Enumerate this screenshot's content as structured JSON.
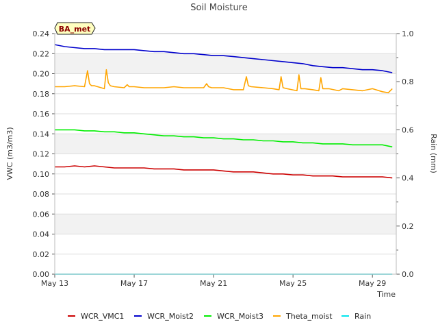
{
  "chart_data": {
    "type": "line",
    "title": "Soil Moisture",
    "site_label": "BA_met",
    "xlabel": "Time",
    "ylabel": "VWC (m3/m3)",
    "y2label": "Rain (mm)",
    "x_unit": "days since May 13",
    "xlim": [
      0,
      17.2
    ],
    "ylim": [
      0,
      0.24
    ],
    "y2lim": [
      0,
      1.0
    ],
    "x_ticks": [
      {
        "value": 0,
        "label": "May 13"
      },
      {
        "value": 4,
        "label": "May 17"
      },
      {
        "value": 8,
        "label": "May 21"
      },
      {
        "value": 12,
        "label": "May 25"
      },
      {
        "value": 16,
        "label": "May 29"
      }
    ],
    "y_ticks": [
      {
        "value": 0.0,
        "label": "0.00"
      },
      {
        "value": 0.02,
        "label": "0.02"
      },
      {
        "value": 0.04,
        "label": "0.04"
      },
      {
        "value": 0.06,
        "label": "0.06"
      },
      {
        "value": 0.08,
        "label": "0.08"
      },
      {
        "value": 0.1,
        "label": "0.10"
      },
      {
        "value": 0.12,
        "label": "0.12"
      },
      {
        "value": 0.14,
        "label": "0.14"
      },
      {
        "value": 0.16,
        "label": "0.16"
      },
      {
        "value": 0.18,
        "label": "0.18"
      },
      {
        "value": 0.2,
        "label": "0.20"
      },
      {
        "value": 0.22,
        "label": "0.22"
      },
      {
        "value": 0.24,
        "label": "0.24"
      }
    ],
    "y2_ticks": [
      {
        "value": 0.0,
        "label": "0.0"
      },
      {
        "value": 0.2,
        "label": "0.2"
      },
      {
        "value": 0.4,
        "label": "0.4"
      },
      {
        "value": 0.6,
        "label": "0.6"
      },
      {
        "value": 0.8,
        "label": "0.8"
      },
      {
        "value": 1.0,
        "label": "1.0"
      }
    ],
    "legend_position": "bottom",
    "series": [
      {
        "name": "WCR_VMC1",
        "color": "#cc0000",
        "axis": "left",
        "x": [
          0,
          0.5,
          1,
          1.5,
          2,
          2.5,
          3,
          3.5,
          4,
          4.5,
          5,
          5.5,
          6,
          6.5,
          7,
          7.5,
          8,
          8.5,
          9,
          9.5,
          10,
          10.5,
          11,
          11.5,
          12,
          12.5,
          13,
          13.5,
          14,
          14.5,
          15,
          15.5,
          16,
          16.5,
          17
        ],
        "y": [
          0.107,
          0.107,
          0.108,
          0.107,
          0.108,
          0.107,
          0.106,
          0.106,
          0.106,
          0.106,
          0.105,
          0.105,
          0.105,
          0.104,
          0.104,
          0.104,
          0.104,
          0.103,
          0.102,
          0.102,
          0.102,
          0.101,
          0.1,
          0.1,
          0.099,
          0.099,
          0.098,
          0.098,
          0.098,
          0.097,
          0.097,
          0.097,
          0.097,
          0.097,
          0.096
        ]
      },
      {
        "name": "WCR_Moist2",
        "color": "#0000cc",
        "axis": "left",
        "x": [
          0,
          0.5,
          1,
          1.5,
          2,
          2.5,
          3,
          3.5,
          4,
          4.5,
          5,
          5.5,
          6,
          6.5,
          7,
          7.5,
          8,
          8.5,
          9,
          9.5,
          10,
          10.5,
          11,
          11.5,
          12,
          12.5,
          13,
          13.5,
          14,
          14.5,
          15,
          15.5,
          16,
          16.5,
          17
        ],
        "y": [
          0.229,
          0.227,
          0.226,
          0.225,
          0.225,
          0.224,
          0.224,
          0.224,
          0.224,
          0.223,
          0.222,
          0.222,
          0.221,
          0.22,
          0.22,
          0.219,
          0.218,
          0.218,
          0.217,
          0.216,
          0.215,
          0.214,
          0.213,
          0.212,
          0.211,
          0.21,
          0.208,
          0.207,
          0.206,
          0.206,
          0.205,
          0.204,
          0.204,
          0.203,
          0.201
        ]
      },
      {
        "name": "WCR_Moist3",
        "color": "#00ee00",
        "axis": "left",
        "x": [
          0,
          0.5,
          1,
          1.5,
          2,
          2.5,
          3,
          3.5,
          4,
          4.5,
          5,
          5.5,
          6,
          6.5,
          7,
          7.5,
          8,
          8.5,
          9,
          9.5,
          10,
          10.5,
          11,
          11.5,
          12,
          12.5,
          13,
          13.5,
          14,
          14.5,
          15,
          15.5,
          16,
          16.5,
          17
        ],
        "y": [
          0.144,
          0.144,
          0.144,
          0.143,
          0.143,
          0.142,
          0.142,
          0.141,
          0.141,
          0.14,
          0.139,
          0.138,
          0.138,
          0.137,
          0.137,
          0.136,
          0.136,
          0.135,
          0.135,
          0.134,
          0.134,
          0.133,
          0.133,
          0.132,
          0.132,
          0.131,
          0.131,
          0.13,
          0.13,
          0.13,
          0.129,
          0.129,
          0.129,
          0.129,
          0.127
        ]
      },
      {
        "name": "Theta_moist",
        "color": "#ffa500",
        "axis": "left",
        "x": [
          0,
          0.5,
          1,
          1.5,
          1.65,
          1.75,
          1.85,
          2,
          2.5,
          2.6,
          2.7,
          2.8,
          3,
          3.5,
          3.65,
          3.75,
          4,
          4.5,
          5,
          5.5,
          6,
          6.5,
          7,
          7.5,
          7.65,
          7.75,
          7.9,
          8.5,
          9,
          9.5,
          9.65,
          9.75,
          9.9,
          10.5,
          11,
          11.3,
          11.4,
          11.5,
          11.7,
          12.2,
          12.3,
          12.4,
          12.6,
          13,
          13.3,
          13.4,
          13.5,
          13.8,
          14.3,
          14.5,
          15,
          15.5,
          16,
          16.5,
          16.8,
          17
        ],
        "y": [
          0.187,
          0.187,
          0.188,
          0.187,
          0.203,
          0.19,
          0.188,
          0.188,
          0.185,
          0.204,
          0.191,
          0.188,
          0.187,
          0.186,
          0.189,
          0.187,
          0.187,
          0.186,
          0.186,
          0.186,
          0.187,
          0.186,
          0.186,
          0.186,
          0.19,
          0.187,
          0.186,
          0.186,
          0.184,
          0.184,
          0.197,
          0.188,
          0.187,
          0.186,
          0.185,
          0.184,
          0.197,
          0.186,
          0.185,
          0.183,
          0.199,
          0.185,
          0.185,
          0.184,
          0.183,
          0.196,
          0.185,
          0.185,
          0.183,
          0.185,
          0.184,
          0.183,
          0.185,
          0.182,
          0.181,
          0.185
        ]
      },
      {
        "name": "Rain",
        "color": "#00e5ee",
        "axis": "right",
        "x": [
          0,
          17
        ],
        "y": [
          0,
          0
        ]
      }
    ]
  }
}
